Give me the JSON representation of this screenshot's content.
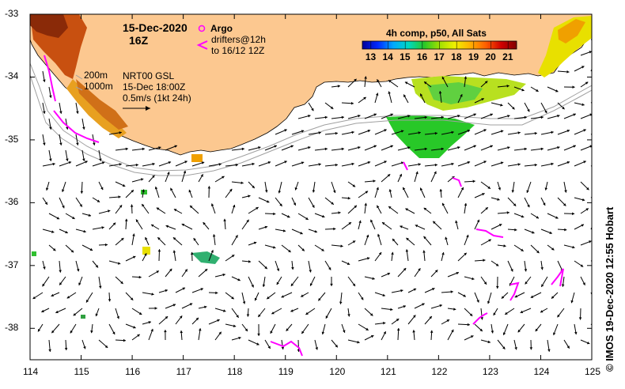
{
  "header": {
    "date": "15-Dec-2020",
    "time": "16Z",
    "argo_label": "Argo",
    "drifters_line1": "drifters@12h",
    "drifters_line2": "to 16/12 12Z"
  },
  "annotations": {
    "depth_200": "200m",
    "depth_1000": "1000m",
    "product": "NRT00 GSL",
    "product_time": "15-Dec 18:00Z",
    "scale": "0.5m/s (1kt 24h)"
  },
  "colorbar": {
    "title": "4h comp, p50, All Sats",
    "ticks": [
      "13",
      "14",
      "15",
      "16",
      "17",
      "18",
      "19",
      "20",
      "21"
    ],
    "colors": [
      "#00009a",
      "#0028ff",
      "#00a8ff",
      "#00d8a0",
      "#28c828",
      "#a0e000",
      "#f0f000",
      "#ffb000",
      "#ff6000",
      "#d00000",
      "#800000"
    ]
  },
  "axes": {
    "lon_ticks": [
      "114",
      "115",
      "116",
      "117",
      "118",
      "119",
      "120",
      "121",
      "122",
      "123",
      "124",
      "125"
    ],
    "lat_ticks": [
      "-33",
      "-34",
      "-35",
      "-36",
      "-37",
      "-38"
    ],
    "lon_range": [
      114,
      125
    ],
    "lat_range": [
      -38.5,
      -33
    ]
  },
  "credit": "©  IMOS 19-Dec-2020 12:55 Hobart",
  "colors": {
    "land": "#fcc890",
    "isobath": "#a0a0a0",
    "drifter": "#ff00ff",
    "arrow": "#000000"
  }
}
